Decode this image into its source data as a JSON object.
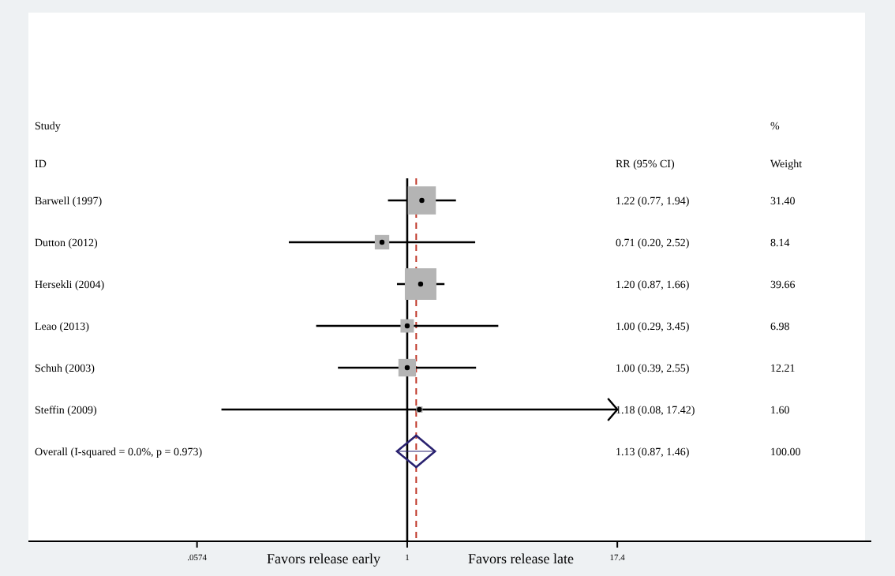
{
  "chart_data": {
    "type": "scatter",
    "orientation": "horizontal",
    "log": "x",
    "categories": [
      "Barwell (1997)",
      "Dutton (2012)",
      "Hersekli (2004)",
      "Leao (2013)",
      "Schuh (2003)",
      "Steffin (2009)",
      "Overall  (I-squared = 0.0%, p = 0.973)"
    ],
    "series": [
      {
        "marker": "square",
        "color": "#b4b4b4",
        "values": [
          1.22,
          0.71,
          1.2,
          1.0,
          1.0,
          1.18,
          null
        ],
        "errors": [
          [
            0.77,
            1.94
          ],
          [
            0.2,
            2.52
          ],
          [
            0.87,
            1.66
          ],
          [
            0.29,
            3.45
          ],
          [
            0.39,
            2.55
          ],
          [
            0.08,
            17.42
          ],
          null
        ],
        "sizes": [
          0.79,
          0.21,
          1,
          0.18,
          0.31,
          0.04,
          null
        ]
      },
      {
        "marker": "diamond",
        "color": "#2a2270",
        "values": [
          null,
          null,
          null,
          null,
          null,
          null,
          1.13
        ],
        "errors": [
          null,
          null,
          null,
          null,
          null,
          null,
          [
            0.87,
            1.46
          ]
        ]
      }
    ],
    "xlim": [
      0.0058,
      550
    ],
    "xticks": [
      {
        "value": 0.0574,
        "label": ".0574"
      },
      1,
      17.4
    ],
    "ref_lines": [
      {
        "axis": "x",
        "value": 1,
        "color": "#000000",
        "line_style": "solid"
      },
      {
        "axis": "x",
        "value": 1.13,
        "color": "#c0392b",
        "line_style": "dashed"
      }
    ],
    "annotations": [
      "Study",
      "ID",
      "RR (95% CI)",
      "%",
      "Weight",
      "Favors release early",
      "Favors release late",
      "1.22 (0.77, 1.94)",
      "0.71 (0.20, 2.52)",
      "1.20 (0.87, 1.66)",
      "1.00 (0.29, 3.45)",
      "1.00 (0.39, 2.55)",
      "1.18 (0.08, 17.42)",
      "1.13 (0.87, 1.46)",
      "31.40",
      "8.14",
      "39.66",
      "6.98",
      "12.21",
      "1.60",
      "100.00"
    ],
    "grid": false
  }
}
